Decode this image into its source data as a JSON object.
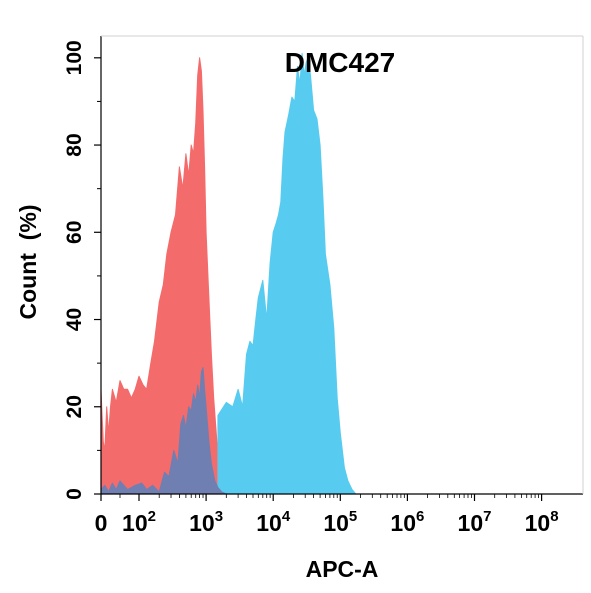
{
  "chart_data": {
    "type": "area",
    "title": "DMC427",
    "xlabel": "APC-A",
    "ylabel": "Count  (%)",
    "x_scale": "biexponential",
    "xlim": [
      0,
      100000000
    ],
    "ylim": [
      0,
      105
    ],
    "y_ticks": [
      {
        "value": 0,
        "label": "0"
      },
      {
        "value": 20,
        "label": "20"
      },
      {
        "value": 40,
        "label": "40"
      },
      {
        "value": 60,
        "label": "60"
      },
      {
        "value": 80,
        "label": "80"
      },
      {
        "value": 100,
        "label": "100"
      }
    ],
    "x_ticks": [
      {
        "value": 0,
        "base": "0",
        "exp": ""
      },
      {
        "value": 100,
        "base": "10",
        "exp": "2"
      },
      {
        "value": 1000,
        "base": "10",
        "exp": "3"
      },
      {
        "value": 10000,
        "base": "10",
        "exp": "4"
      },
      {
        "value": 100000,
        "base": "10",
        "exp": "5"
      },
      {
        "value": 1000000,
        "base": "10",
        "exp": "6"
      },
      {
        "value": 10000000,
        "base": "10",
        "exp": "7"
      },
      {
        "value": 100000000,
        "base": "10",
        "exp": "8"
      }
    ],
    "series": [
      {
        "color": "#f46b6b",
        "x": [
          0,
          0,
          3,
          6,
          10,
          15,
          20,
          25,
          30,
          40,
          50,
          60,
          70,
          80,
          90,
          100,
          115,
          130,
          150,
          170,
          200,
          230,
          260,
          300,
          350,
          400,
          450,
          500,
          550,
          600,
          650,
          700,
          750,
          800,
          850,
          900,
          950,
          1000,
          1100,
          1200,
          1300,
          1450,
          1600,
          1800,
          2000
        ],
        "y": [
          0,
          24,
          18,
          12,
          10,
          20,
          14,
          20,
          24,
          21,
          26,
          24,
          24,
          22,
          24,
          27,
          25,
          24,
          30,
          35,
          44,
          48,
          55,
          60,
          64,
          75,
          70,
          78,
          73,
          80,
          78,
          85,
          96,
          100,
          97,
          88,
          75,
          60,
          45,
          32,
          22,
          12,
          6,
          2,
          0
        ]
      },
      {
        "color": "#57cbf0",
        "x": [
          1500,
          2000,
          2500,
          3000,
          3500,
          4000,
          4500,
          5000,
          5500,
          6000,
          7000,
          8000,
          9000,
          10000,
          11000,
          12000,
          13000,
          14000,
          15000,
          17000,
          19000,
          21000,
          23000,
          25000,
          27000,
          29000,
          31000,
          33000,
          36000,
          40000,
          45000,
          50000,
          55000,
          60000,
          70000,
          80000,
          90000,
          100000,
          115000,
          130000,
          150000,
          170000
        ],
        "y": [
          18,
          21,
          20,
          24,
          20,
          32,
          35,
          34,
          40,
          45,
          49,
          40,
          53,
          60,
          62,
          64,
          67,
          77,
          83,
          87,
          91,
          90,
          98,
          94,
          101,
          96,
          99,
          100,
          96,
          88,
          86,
          80,
          68,
          55,
          48,
          38,
          22,
          14,
          6,
          3,
          1,
          0
        ]
      },
      {
        "color": "#6f7fb1",
        "x": [
          0,
          10,
          20,
          30,
          40,
          50,
          70,
          90,
          110,
          130,
          160,
          200,
          240,
          280,
          330,
          380,
          420,
          460,
          500,
          550,
          600,
          650,
          700,
          750,
          800,
          850,
          900,
          950,
          1000,
          1100,
          1200,
          1350,
          1500,
          1700,
          2000
        ],
        "y": [
          1,
          2,
          0.5,
          2.5,
          1,
          3,
          1,
          2,
          2.5,
          1,
          2,
          0.5,
          5,
          4,
          10,
          7,
          16,
          18,
          15,
          20,
          19,
          23,
          21,
          25,
          22,
          28,
          29,
          24,
          20,
          12,
          7,
          3,
          1.5,
          0.5,
          0
        ]
      }
    ]
  }
}
